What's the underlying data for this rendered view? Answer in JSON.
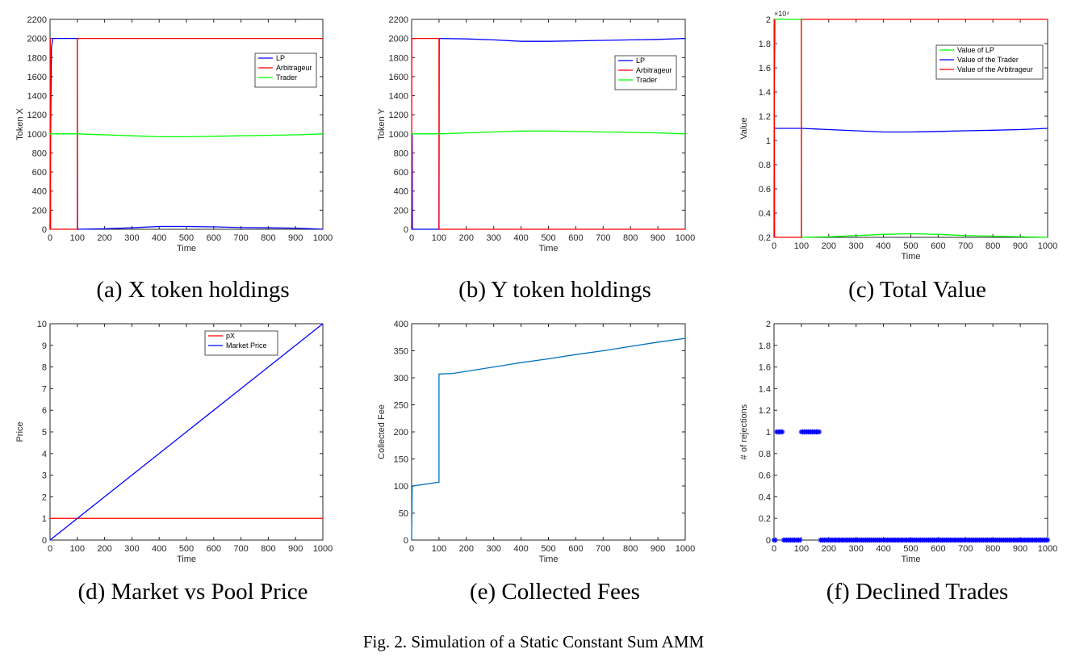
{
  "figure_caption": "Fig. 2.  Simulation of a Static Constant Sum AMM",
  "colors": {
    "blue": "#0000ff",
    "red": "#ff0000",
    "green": "#00ff00",
    "fee": "#0072bd"
  },
  "chart_data": [
    {
      "type": "line",
      "caption": "(a) X token holdings",
      "xlabel": "Time",
      "ylabel": "Token X",
      "xlim": [
        0,
        1000
      ],
      "ylim": [
        0,
        2200
      ],
      "xticks": [
        0,
        100,
        200,
        300,
        400,
        500,
        600,
        700,
        800,
        900,
        1000
      ],
      "yticks": [
        0,
        200,
        400,
        600,
        800,
        1000,
        1200,
        1400,
        1600,
        1800,
        2000,
        2200
      ],
      "legend_position": "top-right",
      "series": [
        {
          "name": "LP",
          "color": "#0000ff",
          "x": [
            0,
            2,
            5,
            10,
            100,
            101,
            200,
            300,
            400,
            500,
            600,
            700,
            800,
            900,
            1000
          ],
          "y": [
            0,
            1000,
            1900,
            2000,
            2000,
            0,
            5,
            15,
            30,
            30,
            25,
            18,
            15,
            12,
            0
          ]
        },
        {
          "name": "Arbitrageur",
          "color": "#ff0000",
          "x": [
            0,
            1,
            2,
            100,
            100,
            1000
          ],
          "y": [
            0,
            2000,
            0,
            0,
            2000,
            2000
          ]
        },
        {
          "name": "Trader",
          "color": "#00ff00",
          "x": [
            0,
            100,
            200,
            300,
            400,
            500,
            600,
            700,
            800,
            900,
            1000
          ],
          "y": [
            1000,
            1000,
            990,
            980,
            970,
            970,
            975,
            980,
            985,
            990,
            1000
          ]
        }
      ]
    },
    {
      "type": "line",
      "caption": "(b) Y token holdings",
      "xlabel": "Time",
      "ylabel": "Token Y",
      "xlim": [
        0,
        1000
      ],
      "ylim": [
        0,
        2200
      ],
      "xticks": [
        0,
        100,
        200,
        300,
        400,
        500,
        600,
        700,
        800,
        900,
        1000
      ],
      "yticks": [
        0,
        200,
        400,
        600,
        800,
        1000,
        1200,
        1400,
        1600,
        1800,
        2000,
        2200
      ],
      "legend_position": "top-right",
      "series": [
        {
          "name": "LP",
          "color": "#0000ff",
          "x": [
            0,
            2,
            3,
            5,
            100,
            101,
            200,
            300,
            400,
            500,
            600,
            700,
            800,
            900,
            1000
          ],
          "y": [
            0,
            1000,
            0,
            0,
            0,
            2000,
            1995,
            1985,
            1970,
            1970,
            1975,
            1980,
            1985,
            1990,
            2000
          ]
        },
        {
          "name": "Arbitrageur",
          "color": "#ff0000",
          "x": [
            0,
            1,
            2,
            100,
            100,
            1000
          ],
          "y": [
            0,
            2000,
            2000,
            2000,
            0,
            0
          ]
        },
        {
          "name": "Trader",
          "color": "#00ff00",
          "x": [
            0,
            100,
            200,
            300,
            400,
            500,
            600,
            700,
            800,
            900,
            1000
          ],
          "y": [
            1000,
            1000,
            1010,
            1020,
            1030,
            1030,
            1025,
            1020,
            1015,
            1010,
            1000
          ]
        }
      ]
    },
    {
      "type": "line",
      "caption": "(c) Total Value",
      "xlabel": "Time",
      "ylabel": "Value",
      "exponent_label": "×10⁴",
      "xlim": [
        0,
        1000
      ],
      "ylim": [
        0.2,
        2.0
      ],
      "xticks": [
        0,
        100,
        200,
        300,
        400,
        500,
        600,
        700,
        800,
        900,
        1000
      ],
      "yticks": [
        0.2,
        0.4,
        0.6,
        0.8,
        1,
        1.2,
        1.4,
        1.6,
        1.8,
        2
      ],
      "legend_position": "top-right",
      "series": [
        {
          "name": "Value of LP",
          "color": "#00ff00",
          "x": [
            0,
            2,
            5,
            10,
            100,
            101,
            200,
            300,
            400,
            500,
            600,
            700,
            800,
            900,
            1000
          ],
          "y": [
            1.0,
            1.6,
            2.0,
            2.0,
            2.0,
            0.2,
            0.205,
            0.215,
            0.225,
            0.23,
            0.225,
            0.215,
            0.21,
            0.205,
            0.2
          ]
        },
        {
          "name": "Value of the Trader",
          "color": "#0000ff",
          "x": [
            0,
            100,
            200,
            300,
            400,
            500,
            600,
            700,
            800,
            900,
            1000
          ],
          "y": [
            1.1,
            1.1,
            1.09,
            1.08,
            1.07,
            1.07,
            1.075,
            1.08,
            1.085,
            1.09,
            1.1
          ]
        },
        {
          "name": "Value of the Arbitrageur",
          "color": "#ff0000",
          "x": [
            0,
            1,
            2,
            100,
            100,
            1000
          ],
          "y": [
            0.2,
            2.0,
            0.2,
            0.2,
            2.0,
            2.0
          ]
        }
      ]
    },
    {
      "type": "line",
      "caption": "(d) Market vs Pool Price",
      "xlabel": "Time",
      "ylabel": "Price",
      "xlim": [
        0,
        1000
      ],
      "ylim": [
        0,
        10
      ],
      "xticks": [
        0,
        100,
        200,
        300,
        400,
        500,
        600,
        700,
        800,
        900,
        1000
      ],
      "yticks": [
        0,
        1,
        2,
        3,
        4,
        5,
        6,
        7,
        8,
        9,
        10
      ],
      "legend_position": "top-right",
      "series": [
        {
          "name": "pX",
          "color": "#ff0000",
          "x": [
            0,
            1000
          ],
          "y": [
            1,
            1
          ]
        },
        {
          "name": "Market Price",
          "color": "#0000ff",
          "x": [
            0,
            1000
          ],
          "y": [
            0,
            10
          ]
        }
      ]
    },
    {
      "type": "line",
      "caption": "(e) Collected Fees",
      "xlabel": "Time",
      "ylabel": "Collected Fee",
      "xlim": [
        0,
        1000
      ],
      "ylim": [
        0,
        400
      ],
      "xticks": [
        0,
        100,
        200,
        300,
        400,
        500,
        600,
        700,
        800,
        900,
        1000
      ],
      "yticks": [
        0,
        50,
        100,
        150,
        200,
        250,
        300,
        350,
        400
      ],
      "series": [
        {
          "color": "#0072bd",
          "x": [
            0,
            2,
            5,
            100,
            100,
            150,
            200,
            300,
            400,
            500,
            600,
            700,
            800,
            900,
            1000
          ],
          "y": [
            0,
            98,
            100,
            107,
            307,
            308,
            312,
            320,
            328,
            335,
            343,
            350,
            358,
            366,
            373
          ]
        }
      ]
    },
    {
      "type": "scatter",
      "caption": "(f) Declined Trades",
      "xlabel": "Time",
      "ylabel": "# of rejections",
      "xlim": [
        0,
        1000
      ],
      "ylim": [
        0,
        2
      ],
      "xticks": [
        0,
        100,
        200,
        300,
        400,
        500,
        600,
        700,
        800,
        900,
        1000
      ],
      "yticks": [
        0,
        0.2,
        0.4,
        0.6,
        0.8,
        1,
        1.2,
        1.4,
        1.6,
        1.8,
        2
      ],
      "marker": "*",
      "ones_x": [
        10,
        15,
        20,
        25,
        30,
        100,
        105,
        110,
        115,
        120,
        125,
        130,
        135,
        140,
        145,
        150,
        155,
        160,
        165
      ],
      "zero_range": [
        0,
        1000
      ]
    }
  ]
}
